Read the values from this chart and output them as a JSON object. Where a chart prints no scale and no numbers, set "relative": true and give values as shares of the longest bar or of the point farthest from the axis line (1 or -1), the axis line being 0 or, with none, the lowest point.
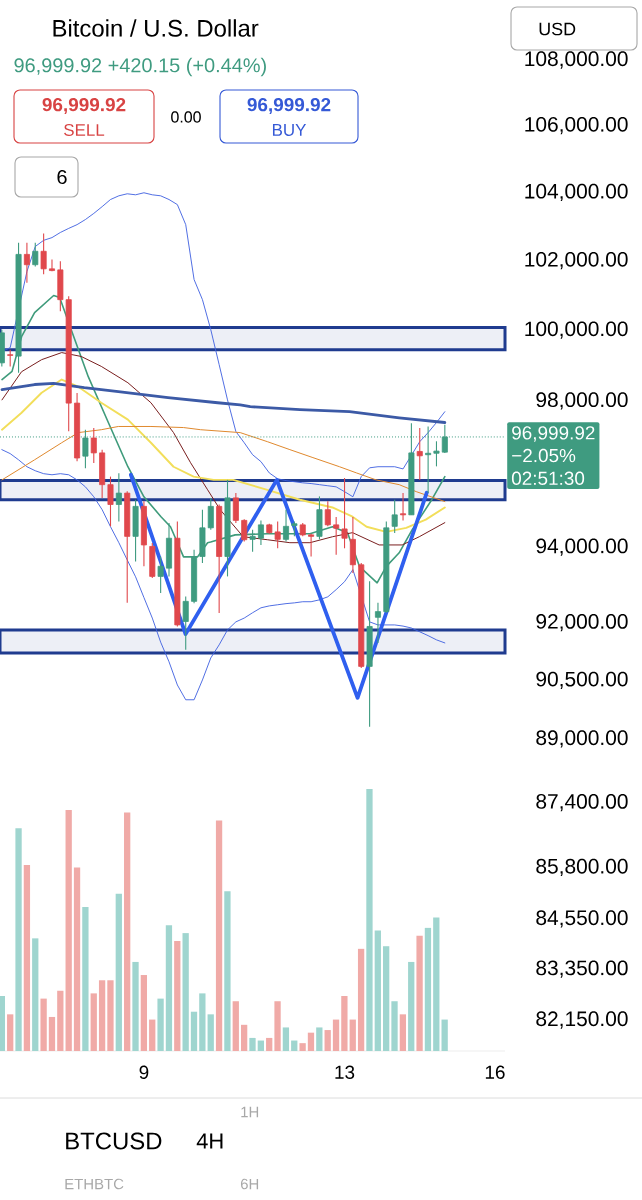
{
  "chart_data": [
    {
      "type": "candlestick",
      "title": "Bitcoin / U.S. Dollar",
      "subtitle": "96,999.92  +420.15 (+0.44%)",
      "annotations": [
        "96,999.92",
        "SELL",
        "0.00",
        "96,999.92",
        "BUY",
        "6",
        "USD",
        "−2.05%",
        "02:51:30",
        "BTCUSD",
        "4H",
        "1H",
        "ETHBTC",
        "6H"
      ],
      "x": [
        6.1667,
        6.3333,
        6.5,
        6.6667,
        6.8333,
        7,
        7.1667,
        7.3333,
        7.5,
        7.6667,
        7.8333,
        8,
        8.1667,
        8.3333,
        8.5,
        8.6667,
        8.8333,
        9,
        9.1667,
        9.3333,
        9.5,
        9.6667,
        9.8333,
        10,
        10.1667,
        10.3333,
        10.5,
        10.6667,
        10.8333,
        11,
        11.1667,
        11.3333,
        11.5,
        11.6667,
        11.8333,
        12,
        12.1667,
        12.3333,
        12.5,
        12.6667,
        12.8333,
        13,
        13.1667,
        13.3333,
        13.5,
        13.6667,
        13.8333,
        14,
        14.1667,
        14.3333,
        14.5,
        14.6667,
        14.8333,
        15
      ],
      "ohlc": [
        [
          99070,
          100010,
          98970,
          99920
        ],
        [
          99300,
          99440,
          98970,
          99280
        ],
        [
          99260,
          102520,
          98790,
          102180
        ],
        [
          102180,
          102520,
          101360,
          101880
        ],
        [
          101880,
          102520,
          101830,
          102270
        ],
        [
          102270,
          102790,
          101600,
          101760
        ],
        [
          101760,
          102030,
          101690,
          101710
        ],
        [
          101730,
          101980,
          100540,
          100870
        ],
        [
          100870,
          100970,
          97160,
          97940
        ],
        [
          97940,
          98220,
          96330,
          96420
        ],
        [
          96470,
          97200,
          96140,
          96970
        ],
        [
          96970,
          97250,
          96280,
          96560
        ],
        [
          96560,
          96650,
          95330,
          95690
        ],
        [
          95690,
          95910,
          94560,
          95150
        ],
        [
          95150,
          96000,
          94690,
          95460
        ],
        [
          95460,
          95510,
          92520,
          94290
        ],
        [
          94290,
          95280,
          93620,
          95100
        ],
        [
          95100,
          95240,
          93490,
          94060
        ],
        [
          94020,
          94110,
          93180,
          93220
        ],
        [
          93220,
          93750,
          92780,
          93490
        ],
        [
          93440,
          94650,
          93220,
          94240
        ],
        [
          94240,
          94690,
          91900,
          91940
        ],
        [
          92030,
          92690,
          91290,
          92560
        ],
        [
          92560,
          93930,
          92510,
          93750
        ],
        [
          93750,
          95010,
          93580,
          94520
        ],
        [
          94520,
          95330,
          94470,
          95100
        ],
        [
          95100,
          95150,
          92250,
          93750
        ],
        [
          93750,
          95820,
          93220,
          95330
        ],
        [
          95330,
          95460,
          94650,
          94720
        ],
        [
          94720,
          94750,
          94150,
          94200
        ],
        [
          94210,
          94470,
          93880,
          94290
        ],
        [
          94240,
          94720,
          94060,
          94600
        ],
        [
          94600,
          94630,
          94360,
          94390
        ],
        [
          94410,
          94690,
          93970,
          94210
        ],
        [
          94210,
          95010,
          94150,
          94560
        ],
        [
          94580,
          94690,
          94290,
          94630
        ],
        [
          94600,
          94650,
          94290,
          94330
        ],
        [
          94330,
          94360,
          93750,
          94290
        ],
        [
          94290,
          95370,
          94210,
          95010
        ],
        [
          95010,
          95240,
          94560,
          94600
        ],
        [
          94600,
          94810,
          93800,
          94510
        ],
        [
          94490,
          95870,
          93970,
          94240
        ],
        [
          94210,
          94810,
          93310,
          93530
        ],
        [
          93530,
          93580,
          90820,
          90860
        ],
        [
          90860,
          93090,
          89310,
          91900
        ],
        [
          92140,
          92520,
          91470,
          92290
        ],
        [
          92290,
          94690,
          92250,
          94520
        ],
        [
          94560,
          95280,
          94380,
          94870
        ],
        [
          94900,
          95460,
          94720,
          94870
        ],
        [
          94870,
          97380,
          94870,
          96560
        ],
        [
          96600,
          97250,
          95820,
          96480
        ],
        [
          96510,
          97290,
          95460,
          96550
        ],
        [
          96550,
          96880,
          96190,
          96610
        ],
        [
          96580,
          97340,
          96560,
          96999.92
        ]
      ],
      "colors": [
        "#3f9b80",
        "#e0484c",
        "#3f9b80",
        "#e0484c",
        "#3f9b80",
        "#e0484c",
        "#e0484c",
        "#e0484c",
        "#e0484c",
        "#e0484c",
        "#3f9b80",
        "#e0484c",
        "#e0484c",
        "#e0484c",
        "#3f9b80",
        "#e0484c",
        "#3f9b80",
        "#e0484c",
        "#e0484c",
        "#3f9b80",
        "#3f9b80",
        "#e0484c",
        "#3f9b80",
        "#3f9b80",
        "#3f9b80",
        "#3f9b80",
        "#e0484c",
        "#3f9b80",
        "#e0484c",
        "#e0484c",
        "#3f9b80",
        "#3f9b80",
        "#e0484c",
        "#e0484c",
        "#3f9b80",
        "#3f9b80",
        "#e0484c",
        "#e0484c",
        "#3f9b80",
        "#e0484c",
        "#e0484c",
        "#e0484c",
        "#e0484c",
        "#e0484c",
        "#3f9b80",
        "#3f9b80",
        "#3f9b80",
        "#3f9b80",
        "#e0484c",
        "#3f9b80",
        "#e0484c",
        "#3f9b80",
        "#3f9b80",
        "#3f9b80"
      ],
      "series": [
        {
          "type": "line",
          "color": "#3d5fe0",
          "values": [
            99390,
            99500,
            null,
            101680,
            102410,
            102590,
            102670,
            102820,
            102940,
            103050,
            103200,
            103380,
            103580,
            103790,
            103900,
            103960,
            103930,
            103990,
            103930,
            103900,
            103790,
            103640,
            103050,
            101450,
            100870,
            100010,
            99020,
            98030,
            97150,
            96840,
            96510,
            96320,
            96010,
            95850,
            95800,
            95770,
            95740,
            95720,
            95690,
            95660,
            95630,
            95500,
            95360,
            95910,
            96150,
            96180,
            96180,
            96180,
            96120,
            null,
            96870,
            97120,
            97400,
            97700
          ]
        },
        {
          "type": "line",
          "color": "#3d5fe0",
          "values": [
            96650,
            96540,
            96370,
            96180,
            96070,
            95990,
            95960,
            95990,
            95960,
            95820,
            95630,
            95360,
            95010,
            94550,
            94120,
            93660,
            93210,
            92660,
            92120,
            91490,
            90980,
            90380,
            90000,
            90000,
            90510,
            91080,
            91420,
            91810,
            92020,
            92120,
            92260,
            92390,
            92440,
            92470,
            92500,
            92520,
            92550,
            92550,
            92600,
            92680,
            92870,
            93080,
            93400,
            null,
            92020,
            91940,
            91940,
            91940,
            91910,
            91860,
            91760,
            91660,
            91550,
            91470
          ]
        },
        {
          "type": "line",
          "color": "#3f9b7b",
          "x": [
            6.17,
            6.37,
            6.56,
            6.82,
            7.2,
            7.32,
            7.55,
            7.89,
            8.29,
            8.68,
            9.0,
            9.34,
            9.53,
            9.79,
            10.07,
            10.27,
            10.33,
            10.82,
            11.46,
            12.31,
            12.76,
            13.06,
            13.3,
            13.65,
            13.83,
            14.09,
            14.35,
            14.74,
            15.0
          ],
          "values": [
            98600,
            98830,
            99810,
            100500,
            100990,
            100930,
            100010,
            98680,
            97400,
            96180,
            95360,
            94820,
            94550,
            93740,
            93740,
            94120,
            94140,
            94330,
            94360,
            94360,
            94550,
            94390,
            93480,
            93050,
            93480,
            93850,
            94470,
            95280,
            95910
          ]
        },
        {
          "type": "line",
          "color": "#7a1f1f",
          "x": [
            6.17,
            6.56,
            6.96,
            7.36,
            7.75,
            8.15,
            8.68,
            9.14,
            9.59,
            9.93,
            10.27,
            10.52,
            10.98,
            11.46,
            11.91,
            12.31,
            12.76,
            13.16,
            13.69,
            14.15,
            14.49,
            15.0
          ],
          "values": [
            98030,
            98820,
            99160,
            99360,
            99250,
            98970,
            98510,
            97950,
            97120,
            96290,
            95550,
            95010,
            94280,
            94200,
            94120,
            94120,
            94280,
            94390,
            94060,
            94060,
            94280,
            94660
          ]
        },
        {
          "type": "line",
          "color": "#f2de5a",
          "x": [
            6.17,
            6.56,
            6.96,
            7.36,
            7.69,
            8.15,
            8.68,
            9.14,
            9.59,
            9.99,
            10.39,
            10.78,
            11.46,
            12.11,
            12.76,
            13.16,
            13.44,
            13.83,
            14.23,
            14.62,
            15.0
          ],
          "values": [
            97200,
            97670,
            98230,
            98600,
            98400,
            97950,
            97480,
            96840,
            96180,
            95910,
            95820,
            95820,
            95550,
            95280,
            95070,
            94820,
            94550,
            94410,
            94520,
            94740,
            95070
          ]
        },
        {
          "type": "line",
          "color": "#e0892e",
          "x": [
            6.17,
            6.82,
            7.36,
            7.69,
            8.15,
            8.49,
            9.14,
            9.79,
            10.13,
            10.92,
            11.46,
            11.91,
            12.37,
            12.9,
            13.24,
            13.63,
            14.09,
            14.43,
            15.0
          ],
          "values": [
            95820,
            96370,
            96840,
            97120,
            97200,
            97290,
            97290,
            97260,
            97200,
            97120,
            96870,
            96650,
            96430,
            96180,
            96010,
            95820,
            95690,
            95500,
            95230
          ]
        },
        {
          "type": "line",
          "color": "#3c5aa6",
          "x": [
            6.17,
            6.82,
            7.2,
            7.81,
            8.49,
            9.48,
            10.47,
            10.92,
            11.12,
            12.11,
            13.1,
            14.09,
            15.0
          ],
          "values": [
            98320,
            98460,
            98490,
            98370,
            98260,
            98090,
            97950,
            97890,
            97840,
            97760,
            97700,
            97530,
            97400
          ]
        },
        {
          "type": "line",
          "color": "#2f5fef",
          "x": [
            8.74,
            9.83,
            11.65,
            13.26,
            14.64
          ],
          "values": [
            95960,
            91700,
            95820,
            90050,
            95470
          ]
        }
      ],
      "bands": [
        {
          "axis": "y",
          "from": 99440,
          "to": 100070,
          "color": "#1f3b8f"
        },
        {
          "axis": "y",
          "from": 95280,
          "to": 95800,
          "color": "#1f3b8f"
        },
        {
          "axis": "y",
          "from": 91210,
          "to": 91810,
          "color": "#1f3b8f"
        }
      ],
      "ref_lines": [
        {
          "axis": "y",
          "value": 96999.92,
          "label": "96,999.92",
          "color": "#3f9b80",
          "line_style": "dotted"
        }
      ],
      "log": "y",
      "xlim": [
        6.13,
        16.2
      ],
      "ylim": [
        82150,
        108000
      ],
      "xticks": [
        9,
        13,
        16
      ],
      "yticks": [
        {
          "value": 108000,
          "label": "108,000.00"
        },
        {
          "value": 106000,
          "label": "106,000.00"
        },
        {
          "value": 104000,
          "label": "104,000.00"
        },
        {
          "value": 102000,
          "label": "102,000.00"
        },
        {
          "value": 100000,
          "label": "100,000.00"
        },
        {
          "value": 98000,
          "label": "98,000.00"
        },
        {
          "value": 94000,
          "label": "94,000.00"
        },
        {
          "value": 92000,
          "label": "92,000.00"
        },
        {
          "value": 90500,
          "label": "90,500.00"
        },
        {
          "value": 89000,
          "label": "89,000.00"
        },
        {
          "value": 87400,
          "label": "87,400.00"
        },
        {
          "value": 85800,
          "label": "85,800.00"
        },
        {
          "value": 84550,
          "label": "84,550.00"
        },
        {
          "value": 83350,
          "label": "83,350.00"
        },
        {
          "value": 82150,
          "label": "82,150.00"
        }
      ]
    },
    {
      "type": "bar",
      "relative": true,
      "categories": [
        null,
        null,
        null,
        null,
        null,
        null,
        null,
        null,
        null,
        null,
        null,
        null,
        null,
        null,
        null,
        null,
        null,
        null,
        null,
        null,
        null,
        null,
        null,
        null,
        null,
        null,
        null,
        null,
        null,
        null,
        null,
        null,
        null,
        null,
        null,
        null,
        null,
        null,
        null,
        null,
        null,
        null,
        null,
        null,
        null,
        null,
        null,
        null,
        null,
        null,
        null,
        null,
        null,
        null
      ],
      "values": [
        0.21,
        0.14,
        0.85,
        0.71,
        0.43,
        0.2,
        0.13,
        0.23,
        0.92,
        0.7,
        0.55,
        0.22,
        0.27,
        0.27,
        0.6,
        0.91,
        0.34,
        0.29,
        0.12,
        0.2,
        0.48,
        0.42,
        0.45,
        0.15,
        0.22,
        0.14,
        0.88,
        0.61,
        0.19,
        0.1,
        0.05,
        0.04,
        0.05,
        0.19,
        0.09,
        0.04,
        0.03,
        0.07,
        0.09,
        0.08,
        0.12,
        0.21,
        0.12,
        0.39,
        1.0,
        0.46,
        0.4,
        0.19,
        0.14,
        0.34,
        0.44,
        0.47,
        0.51,
        0.12
      ],
      "colors": [
        "#9fd5cf",
        "#f0aaa7",
        "#9fd5cf",
        "#f0aaa7",
        "#9fd5cf",
        "#f0aaa7",
        "#f0aaa7",
        "#f0aaa7",
        "#f0aaa7",
        "#f0aaa7",
        "#9fd5cf",
        "#f0aaa7",
        "#f0aaa7",
        "#f0aaa7",
        "#9fd5cf",
        "#f0aaa7",
        "#9fd5cf",
        "#f0aaa7",
        "#f0aaa7",
        "#9fd5cf",
        "#9fd5cf",
        "#f0aaa7",
        "#9fd5cf",
        "#9fd5cf",
        "#9fd5cf",
        "#9fd5cf",
        "#f0aaa7",
        "#9fd5cf",
        "#f0aaa7",
        "#f0aaa7",
        "#9fd5cf",
        "#9fd5cf",
        "#f0aaa7",
        "#f0aaa7",
        "#9fd5cf",
        "#9fd5cf",
        "#f0aaa7",
        "#f0aaa7",
        "#9fd5cf",
        "#f0aaa7",
        "#f0aaa7",
        "#f0aaa7",
        "#f0aaa7",
        "#f0aaa7",
        "#9fd5cf",
        "#9fd5cf",
        "#9fd5cf",
        "#9fd5cf",
        "#f0aaa7",
        "#9fd5cf",
        "#f0aaa7",
        "#9fd5cf",
        "#9fd5cf",
        "#9fd5cf"
      ]
    }
  ]
}
